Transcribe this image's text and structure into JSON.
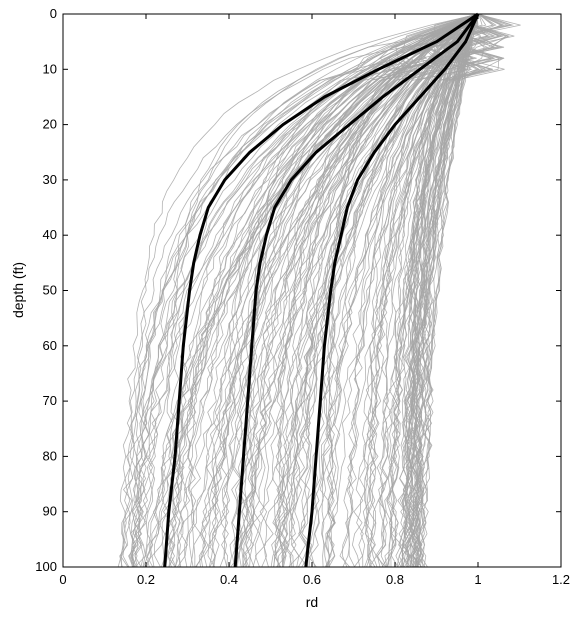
{
  "chart_data": {
    "type": "line",
    "title": "",
    "xlabel": "rd",
    "ylabel": "depth (ft)",
    "xlim": [
      0,
      1.2
    ],
    "ylim": [
      0,
      100
    ],
    "y_reversed": true,
    "xticks": [
      "0",
      "0.2",
      "0.4",
      "0.6",
      "0.8",
      "1",
      "1.2"
    ],
    "yticks": [
      "0",
      "10",
      "20",
      "30",
      "40",
      "50",
      "60",
      "70",
      "80",
      "90",
      "100"
    ],
    "grid": false,
    "legend": "none",
    "colors": {
      "background_series": "#a6a6a6",
      "summary_curves": "#000000",
      "axes": "#000000"
    },
    "background_series": {
      "description_count_approx": 180,
      "rd_range_at_bottom": [
        0.13,
        0.85
      ],
      "common_top_value": {
        "depth": 0,
        "rd": 1.0
      }
    },
    "series": [
      {
        "role": "lower",
        "points": [
          {
            "depth": 0,
            "rd": 1.0
          },
          {
            "depth": 5,
            "rd": 0.9
          },
          {
            "depth": 10,
            "rd": 0.76
          },
          {
            "depth": 15,
            "rd": 0.63
          },
          {
            "depth": 20,
            "rd": 0.53
          },
          {
            "depth": 25,
            "rd": 0.45
          },
          {
            "depth": 30,
            "rd": 0.39
          },
          {
            "depth": 35,
            "rd": 0.35
          },
          {
            "depth": 40,
            "rd": 0.33
          },
          {
            "depth": 45,
            "rd": 0.315
          },
          {
            "depth": 50,
            "rd": 0.305
          },
          {
            "depth": 60,
            "rd": 0.29
          },
          {
            "depth": 70,
            "rd": 0.28
          },
          {
            "depth": 80,
            "rd": 0.27
          },
          {
            "depth": 90,
            "rd": 0.255
          },
          {
            "depth": 100,
            "rd": 0.245
          }
        ]
      },
      {
        "role": "median",
        "points": [
          {
            "depth": 0,
            "rd": 1.0
          },
          {
            "depth": 5,
            "rd": 0.95
          },
          {
            "depth": 10,
            "rd": 0.86
          },
          {
            "depth": 15,
            "rd": 0.77
          },
          {
            "depth": 20,
            "rd": 0.69
          },
          {
            "depth": 25,
            "rd": 0.61
          },
          {
            "depth": 30,
            "rd": 0.55
          },
          {
            "depth": 35,
            "rd": 0.51
          },
          {
            "depth": 40,
            "rd": 0.49
          },
          {
            "depth": 45,
            "rd": 0.475
          },
          {
            "depth": 50,
            "rd": 0.465
          },
          {
            "depth": 60,
            "rd": 0.455
          },
          {
            "depth": 70,
            "rd": 0.445
          },
          {
            "depth": 80,
            "rd": 0.435
          },
          {
            "depth": 90,
            "rd": 0.425
          },
          {
            "depth": 100,
            "rd": 0.415
          }
        ]
      },
      {
        "role": "upper",
        "points": [
          {
            "depth": 0,
            "rd": 1.0
          },
          {
            "depth": 5,
            "rd": 0.97
          },
          {
            "depth": 10,
            "rd": 0.92
          },
          {
            "depth": 15,
            "rd": 0.86
          },
          {
            "depth": 20,
            "rd": 0.8
          },
          {
            "depth": 25,
            "rd": 0.75
          },
          {
            "depth": 30,
            "rd": 0.71
          },
          {
            "depth": 35,
            "rd": 0.685
          },
          {
            "depth": 40,
            "rd": 0.67
          },
          {
            "depth": 45,
            "rd": 0.655
          },
          {
            "depth": 50,
            "rd": 0.645
          },
          {
            "depth": 60,
            "rd": 0.63
          },
          {
            "depth": 70,
            "rd": 0.62
          },
          {
            "depth": 80,
            "rd": 0.61
          },
          {
            "depth": 90,
            "rd": 0.6
          },
          {
            "depth": 100,
            "rd": 0.585
          }
        ]
      }
    ]
  }
}
